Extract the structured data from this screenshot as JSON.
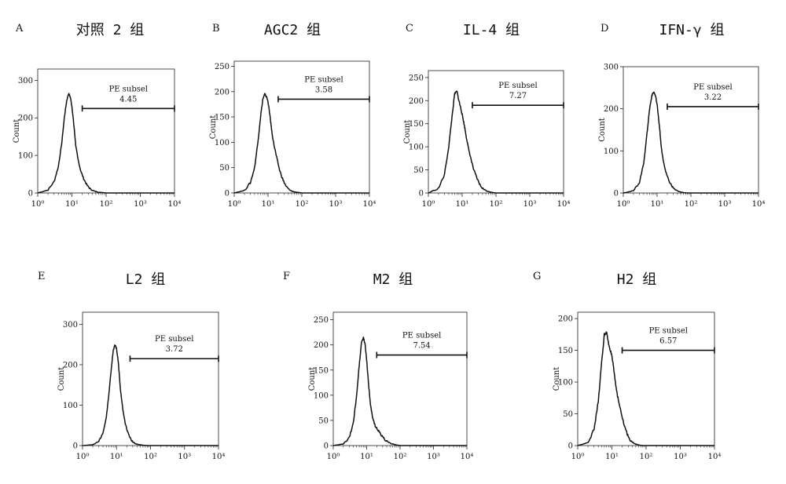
{
  "figure": {
    "panels": [
      {
        "letter": "A",
        "title": "对照 2 组",
        "ylabel": "Count",
        "gate_label": "PE subsel",
        "gate_value": "4.45"
      },
      {
        "letter": "B",
        "title": "AGC2 组",
        "ylabel": "Count",
        "gate_label": "PE subsel",
        "gate_value": "3.58"
      },
      {
        "letter": "C",
        "title": "IL-4 组",
        "ylabel": "Count",
        "gate_label": "PE subsel",
        "gate_value": "7.27"
      },
      {
        "letter": "D",
        "title": "IFN-γ 组",
        "ylabel": "Count",
        "gate_label": "PE subsel",
        "gate_value": "3.22"
      },
      {
        "letter": "E",
        "title": "L2 组",
        "ylabel": "Count",
        "gate_label": "PE subsel",
        "gate_value": "3.72"
      },
      {
        "letter": "F",
        "title": "M2 组",
        "ylabel": "Count",
        "gate_label": "PE subsel",
        "gate_value": "7.54"
      },
      {
        "letter": "G",
        "title": "H2 组",
        "ylabel": "Count",
        "gate_label": "PE subsel",
        "gate_value": "6.57"
      }
    ]
  },
  "chart_data": [
    {
      "type": "area",
      "panel": "A",
      "title": "对照 2 组",
      "ylabel": "Count",
      "x_scale": "log",
      "xlim": [
        1,
        10000
      ],
      "ylim": [
        0,
        330
      ],
      "yticks": [
        0,
        100,
        200,
        300
      ],
      "ytick_labels": [
        "0",
        "100",
        "200",
        "300"
      ],
      "xticks": [
        1,
        10,
        100,
        1000,
        10000
      ],
      "xtick_labels": [
        "10⁰",
        "10¹",
        "10²",
        "10³",
        "10⁴"
      ],
      "series": [
        {
          "x": [
            1,
            2,
            3,
            4,
            5,
            6,
            7,
            8,
            9,
            10,
            11,
            12,
            13,
            15,
            18,
            22,
            28,
            35,
            45,
            60,
            80,
            100
          ],
          "y": [
            0,
            8,
            30,
            70,
            130,
            200,
            245,
            265,
            255,
            230,
            195,
            160,
            125,
            90,
            60,
            38,
            20,
            10,
            5,
            2,
            1,
            0
          ]
        }
      ],
      "gate": {
        "label": "PE subsel",
        "value": "4.45",
        "x_start": 20,
        "x_end": 10000,
        "y": 225
      }
    },
    {
      "type": "area",
      "panel": "B",
      "title": "AGC2 组",
      "ylabel": "Count",
      "x_scale": "log",
      "xlim": [
        1,
        10000
      ],
      "ylim": [
        0,
        260
      ],
      "yticks": [
        0,
        50,
        100,
        150,
        200,
        250
      ],
      "ytick_labels": [
        "0",
        "50",
        "100",
        "150",
        "200",
        "250"
      ],
      "xticks": [
        1,
        10,
        100,
        1000,
        10000
      ],
      "xtick_labels": [
        "10⁰",
        "10¹",
        "10²",
        "10³",
        "10⁴"
      ],
      "series": [
        {
          "x": [
            1,
            2,
            3,
            4,
            5,
            6,
            7,
            8,
            9,
            10,
            11,
            12,
            13,
            15,
            18,
            22,
            28,
            35,
            45,
            60,
            80,
            100
          ],
          "y": [
            0,
            5,
            20,
            50,
            100,
            150,
            185,
            195,
            190,
            180,
            160,
            140,
            120,
            95,
            70,
            45,
            25,
            12,
            5,
            2,
            1,
            0
          ]
        }
      ],
      "gate": {
        "label": "PE subsel",
        "value": "3.58",
        "x_start": 20,
        "x_end": 10000,
        "y": 185
      }
    },
    {
      "type": "area",
      "panel": "C",
      "title": "IL-4 组",
      "ylabel": "Count",
      "x_scale": "log",
      "xlim": [
        1,
        10000
      ],
      "ylim": [
        0,
        265
      ],
      "yticks": [
        0,
        50,
        100,
        150,
        200,
        250
      ],
      "ytick_labels": [
        "0",
        "50",
        "100",
        "150",
        "200",
        "250"
      ],
      "xticks": [
        1,
        10,
        100,
        1000,
        10000
      ],
      "xtick_labels": [
        "10⁰",
        "10¹",
        "10²",
        "10³",
        "10⁴"
      ],
      "series": [
        {
          "x": [
            1,
            2,
            3,
            4,
            5,
            6,
            7,
            8,
            9,
            10,
            11,
            12,
            13,
            15,
            18,
            22,
            28,
            35,
            45,
            60,
            80,
            100
          ],
          "y": [
            0,
            10,
            40,
            100,
            165,
            215,
            220,
            200,
            185,
            170,
            155,
            140,
            125,
            100,
            75,
            50,
            30,
            15,
            7,
            3,
            1,
            0
          ]
        }
      ],
      "gate": {
        "label": "PE subsel",
        "value": "7.27",
        "x_start": 20,
        "x_end": 10000,
        "y": 190
      }
    },
    {
      "type": "area",
      "panel": "D",
      "title": "IFN-γ 组",
      "ylabel": "Count",
      "x_scale": "log",
      "xlim": [
        1,
        10000
      ],
      "ylim": [
        0,
        300
      ],
      "yticks": [
        0,
        100,
        200,
        300
      ],
      "ytick_labels": [
        "0",
        "100",
        "200",
        "300"
      ],
      "xticks": [
        1,
        10,
        100,
        1000,
        10000
      ],
      "xtick_labels": [
        "10⁰",
        "10¹",
        "10²",
        "10³",
        "10⁴"
      ],
      "series": [
        {
          "x": [
            1,
            2,
            3,
            4,
            5,
            6,
            7,
            8,
            9,
            10,
            11,
            12,
            13,
            15,
            18,
            22,
            28,
            35,
            45,
            60,
            80,
            100
          ],
          "y": [
            0,
            5,
            25,
            70,
            140,
            200,
            232,
            240,
            230,
            210,
            180,
            150,
            115,
            80,
            50,
            30,
            15,
            7,
            3,
            1,
            0,
            0
          ]
        }
      ],
      "gate": {
        "label": "PE subsel",
        "value": "3.22",
        "x_start": 20,
        "x_end": 10000,
        "y": 205
      }
    },
    {
      "type": "area",
      "panel": "E",
      "title": "L2 组",
      "ylabel": "Count",
      "x_scale": "log",
      "xlim": [
        1,
        10000
      ],
      "ylim": [
        0,
        330
      ],
      "yticks": [
        0,
        100,
        200,
        300
      ],
      "ytick_labels": [
        "0",
        "100",
        "200",
        "300"
      ],
      "xticks": [
        1,
        10,
        100,
        1000,
        10000
      ],
      "xtick_labels": [
        "10⁰",
        "10¹",
        "10²",
        "10³",
        "10⁴"
      ],
      "series": [
        {
          "x": [
            1,
            2,
            3,
            4,
            5,
            6,
            7,
            8,
            9,
            10,
            11,
            12,
            13,
            15,
            18,
            22,
            28,
            35,
            45,
            60,
            80,
            100
          ],
          "y": [
            0,
            2,
            10,
            30,
            70,
            130,
            190,
            235,
            250,
            240,
            215,
            180,
            140,
            95,
            55,
            30,
            12,
            5,
            2,
            1,
            0,
            0
          ]
        }
      ],
      "gate": {
        "label": "PE subsel",
        "value": "3.72",
        "x_start": 25,
        "x_end": 10000,
        "y": 215
      }
    },
    {
      "type": "area",
      "panel": "F",
      "title": "M2 组",
      "ylabel": "Count",
      "x_scale": "log",
      "xlim": [
        1,
        10000
      ],
      "ylim": [
        0,
        265
      ],
      "yticks": [
        0,
        50,
        100,
        150,
        200,
        250
      ],
      "ytick_labels": [
        "0",
        "50",
        "100",
        "150",
        "200",
        "250"
      ],
      "xticks": [
        1,
        10,
        100,
        1000,
        10000
      ],
      "xtick_labels": [
        "10⁰",
        "10¹",
        "10²",
        "10³",
        "10⁴"
      ],
      "series": [
        {
          "x": [
            1,
            2,
            3,
            4,
            5,
            6,
            7,
            8,
            9,
            10,
            11,
            12,
            13,
            15,
            18,
            22,
            28,
            35,
            45,
            60,
            80,
            100
          ],
          "y": [
            0,
            3,
            15,
            45,
            100,
            160,
            205,
            215,
            200,
            170,
            135,
            105,
            80,
            55,
            40,
            30,
            20,
            12,
            6,
            3,
            1,
            0
          ]
        }
      ],
      "gate": {
        "label": "PE subsel",
        "value": "7.54",
        "x_start": 20,
        "x_end": 10000,
        "y": 180
      }
    },
    {
      "type": "area",
      "panel": "G",
      "title": "H2 组",
      "ylabel": "Count",
      "x_scale": "log",
      "xlim": [
        1,
        10000
      ],
      "ylim": [
        0,
        210
      ],
      "yticks": [
        0,
        50,
        100,
        150,
        200
      ],
      "ytick_labels": [
        "0",
        "50",
        "100",
        "150",
        "200"
      ],
      "xticks": [
        1,
        10,
        100,
        1000,
        10000
      ],
      "xtick_labels": [
        "10⁰",
        "10¹",
        "10²",
        "10³",
        "10⁴"
      ],
      "series": [
        {
          "x": [
            1,
            2,
            3,
            4,
            5,
            6,
            7,
            8,
            9,
            10,
            11,
            12,
            13,
            15,
            18,
            22,
            28,
            35,
            45,
            60,
            80,
            100
          ],
          "y": [
            0,
            5,
            25,
            70,
            130,
            175,
            178,
            160,
            150,
            140,
            125,
            110,
            95,
            75,
            55,
            35,
            18,
            8,
            3,
            1,
            0,
            0
          ]
        }
      ],
      "gate": {
        "label": "PE subsel",
        "value": "6.57",
        "x_start": 20,
        "x_end": 10000,
        "y": 150
      }
    }
  ]
}
